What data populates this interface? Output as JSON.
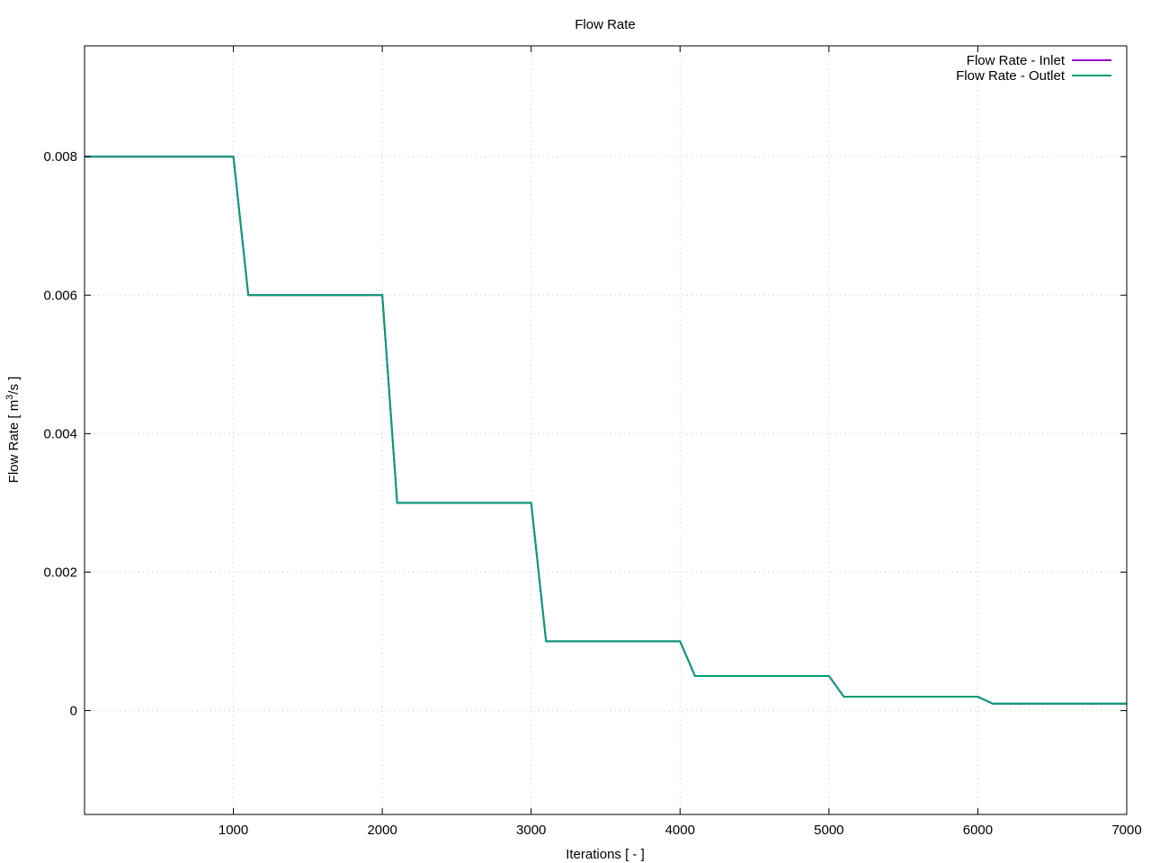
{
  "chart_data": {
    "type": "line",
    "title": "Flow Rate",
    "xlabel": "Iterations [ - ]",
    "ylabel": {
      "prefix": "Flow Rate [ m",
      "sup": "3",
      "suffix": "/s ]"
    },
    "xlim": [
      0,
      7000
    ],
    "ylim": [
      -0.0015,
      0.0096
    ],
    "xticks": [
      {
        "value": 1000,
        "label": "1000"
      },
      {
        "value": 2000,
        "label": "2000"
      },
      {
        "value": 3000,
        "label": "3000"
      },
      {
        "value": 4000,
        "label": "4000"
      },
      {
        "value": 5000,
        "label": "5000"
      },
      {
        "value": 6000,
        "label": "6000"
      },
      {
        "value": 7000,
        "label": "7000"
      }
    ],
    "yticks": [
      {
        "value": 0,
        "label": "0"
      },
      {
        "value": 0.002,
        "label": "0.002"
      },
      {
        "value": 0.004,
        "label": "0.004"
      },
      {
        "value": 0.006,
        "label": "0.006"
      },
      {
        "value": 0.008,
        "label": "0.008"
      }
    ],
    "grid": true,
    "legend_position": "top-right",
    "series": [
      {
        "name": "Flow Rate - Inlet",
        "color": "#9400d3",
        "x": [
          0,
          1000,
          1100,
          2000,
          2100,
          3000,
          3100,
          4000,
          4100,
          5000,
          5100,
          6000,
          6100,
          7000
        ],
        "y": [
          0.008,
          0.008,
          0.006,
          0.006,
          0.003,
          0.003,
          0.001,
          0.001,
          0.0005,
          0.0005,
          0.0002,
          0.0002,
          0.0001,
          0.0001
        ]
      },
      {
        "name": "Flow Rate - Outlet",
        "color": "#009e73",
        "x": [
          0,
          1000,
          1100,
          2000,
          2100,
          3000,
          3100,
          4000,
          4100,
          5000,
          5100,
          6000,
          6100,
          7000
        ],
        "y": [
          0.008,
          0.008,
          0.006,
          0.006,
          0.003,
          0.003,
          0.001,
          0.001,
          0.0005,
          0.0005,
          0.0002,
          0.0002,
          0.0001,
          0.0001
        ]
      }
    ]
  }
}
